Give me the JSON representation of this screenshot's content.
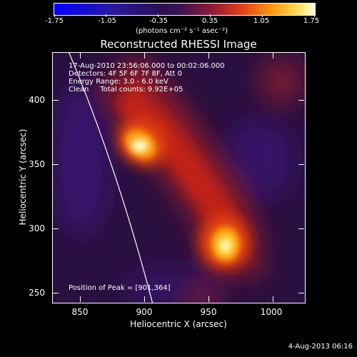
{
  "colorbar": {
    "ticks": [
      "-1.75",
      "-1.05",
      "-0.35",
      "0.35",
      "1.05",
      "1.75"
    ],
    "units": "(photons cm⁻² s⁻¹ asec⁻²)"
  },
  "title": "Reconstructed RHESSI Image",
  "info": {
    "time": "17-Aug-2010 23:56:06.000 to 00:02:06.000",
    "detectors": "Detectors: 4F 5F 6F 7F 8F, Att 0",
    "energy": "Energy Range: 3.0 - 6.0 keV",
    "clean": "Clean     Total counts: 9.92E+05"
  },
  "axes": {
    "xlabel": "Heliocentric X (arcsec)",
    "ylabel": "Heliocentric Y (arcsec)",
    "xticks": [
      "850",
      "900",
      "950",
      "1000"
    ],
    "yticks": [
      "400",
      "350",
      "300",
      "250"
    ]
  },
  "peak": "Position of Peak = [901,364]",
  "datestamp": "4-Aug-2013 06:16"
}
